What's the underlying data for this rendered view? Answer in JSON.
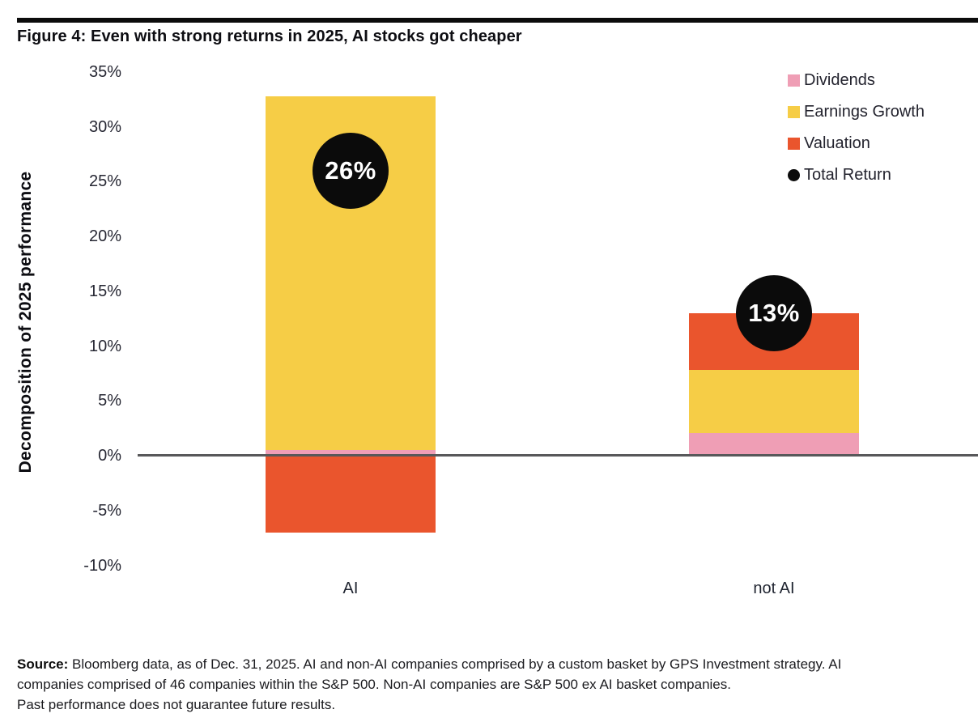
{
  "figure": {
    "title": "Figure 4: Even with strong returns in 2025, AI stocks got cheaper"
  },
  "chart_data": {
    "type": "bar",
    "stacked": true,
    "title": "Figure 4: Even with strong returns in 2025, AI stocks got cheaper",
    "xlabel": "",
    "ylabel": "Decomposition of 2025 performance",
    "categories": [
      "AI",
      "not AI"
    ],
    "series": [
      {
        "name": "Dividends",
        "color": "#EF9EB5",
        "values": [
          0.5,
          2.1
        ]
      },
      {
        "name": "Earnings Growth",
        "color": "#F6CD46",
        "values": [
          32.3,
          5.7
        ]
      },
      {
        "name": "Valuation",
        "color": "#EA552D",
        "values": [
          -7.0,
          5.2
        ]
      }
    ],
    "markers": {
      "name": "Total Return",
      "color": "#0b0b0b",
      "values": [
        26,
        13
      ],
      "labels": [
        "26%",
        "13%"
      ]
    },
    "ylim": [
      -10,
      35
    ],
    "ytick_step": 5,
    "ytick_labels": [
      "35%",
      "30%",
      "25%",
      "20%",
      "15%",
      "10%",
      "5%",
      "0%",
      "-5%",
      "-10%"
    ],
    "grid": false,
    "zero_axis_line": true,
    "legend_position": "top-right",
    "legend": [
      {
        "label": "Dividends",
        "swatch": "square",
        "color": "#EF9EB5"
      },
      {
        "label": "Earnings Growth",
        "swatch": "square",
        "color": "#F6CD46"
      },
      {
        "label": "Valuation",
        "swatch": "square",
        "color": "#EA552D"
      },
      {
        "label": "Total Return",
        "swatch": "circle",
        "color": "#0b0b0b"
      }
    ]
  },
  "source": {
    "label": "Source:",
    "line1_rest": " Bloomberg data, as of Dec. 31, 2025. AI and non-AI companies comprised by a custom basket by GPS Investment strategy. AI",
    "line2": "companies comprised of 46 companies within the S&P 500. Non-AI companies are S&P 500 ex AI basket companies.",
    "line3": "Past performance does not guarantee future results."
  }
}
